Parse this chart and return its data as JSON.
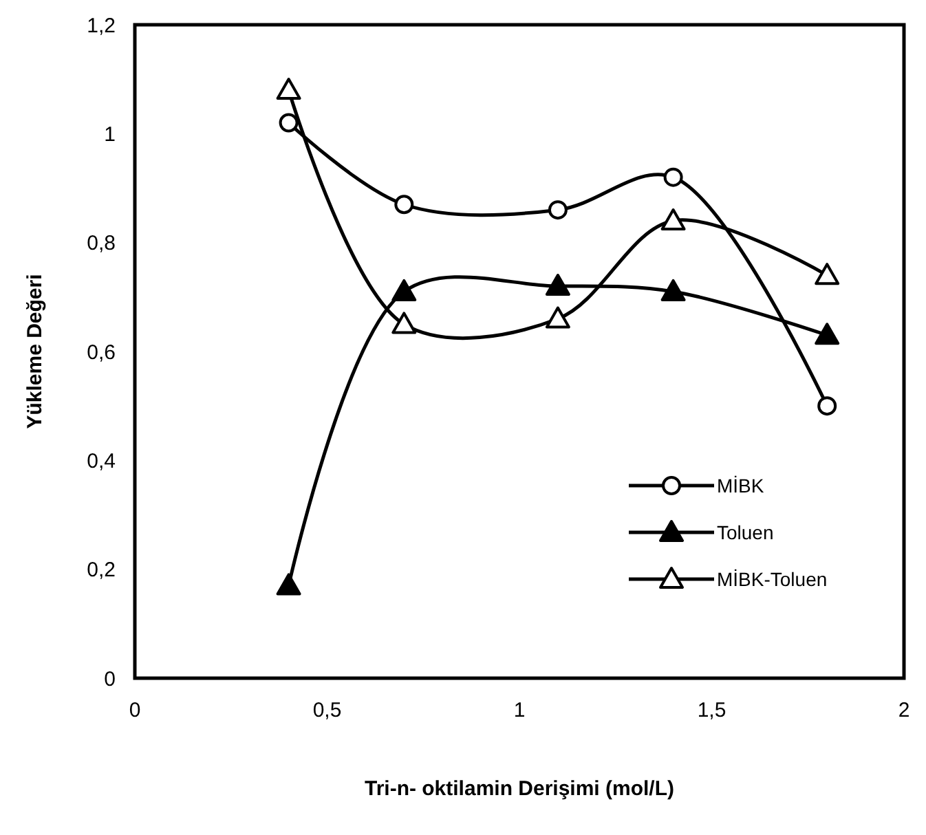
{
  "chart_data": {
    "type": "line",
    "xlabel": "Tri-n- oktilamin Derişimi (mol/L)",
    "ylabel": "Yükleme Değeri",
    "x": [
      0.4,
      0.7,
      1.1,
      1.4,
      1.8
    ],
    "xlim": [
      0,
      2
    ],
    "xticks": [
      0,
      {
        "value": 0.5,
        "label": "0,5"
      },
      1,
      {
        "value": 1.5,
        "label": "1,5"
      },
      2
    ],
    "ylim": [
      0,
      1.2
    ],
    "yticks": [
      0,
      {
        "value": 0.2,
        "label": "0,2"
      },
      {
        "value": 0.4,
        "label": "0,4"
      },
      {
        "value": 0.6,
        "label": "0,6"
      },
      {
        "value": 0.8,
        "label": "0,8"
      },
      1,
      {
        "value": 1.2,
        "label": "1,2"
      }
    ],
    "grid": false,
    "legend": "bottom right",
    "series": [
      {
        "name": "MİBK",
        "color": "#000000",
        "marker": "circle",
        "values": [
          1.02,
          0.87,
          0.86,
          0.92,
          0.5
        ]
      },
      {
        "name": "Toluen",
        "color": "#000000",
        "marker": "triangle",
        "values": [
          0.17,
          0.71,
          0.72,
          0.71,
          0.63
        ]
      },
      {
        "name": "MİBK-Toluen",
        "color": "#000000",
        "marker": "triangle",
        "values": [
          1.08,
          0.65,
          0.66,
          0.84,
          0.74
        ]
      }
    ]
  }
}
